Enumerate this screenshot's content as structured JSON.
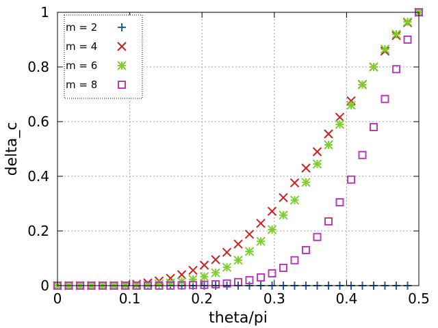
{
  "chart_data": {
    "type": "scatter",
    "title": "",
    "xlabel": "theta/pi",
    "ylabel": "delta_c",
    "xlim": [
      0,
      0.5
    ],
    "ylim": [
      0,
      1
    ],
    "xticks": [
      0,
      0.1,
      0.2,
      0.3,
      0.4,
      0.5
    ],
    "yticks": [
      0,
      0.2,
      0.4,
      0.6,
      0.8,
      1
    ],
    "xtick_labels": [
      "0",
      "0.1",
      "0.2",
      "0.3",
      "0.4",
      "0.5"
    ],
    "ytick_labels": [
      "0",
      "0.2",
      "0.4",
      "0.6",
      "0.8",
      "1"
    ],
    "grid": true,
    "legend_position": "top-left",
    "x": [
      0,
      0.0156,
      0.0313,
      0.0469,
      0.0625,
      0.0781,
      0.0938,
      0.1094,
      0.125,
      0.1406,
      0.1563,
      0.1719,
      0.1875,
      0.2031,
      0.2188,
      0.2344,
      0.25,
      0.2656,
      0.2813,
      0.2969,
      0.3125,
      0.3281,
      0.3438,
      0.3594,
      0.375,
      0.3906,
      0.4063,
      0.4219,
      0.4375,
      0.4531,
      0.4688,
      0.4844,
      0.5
    ],
    "series": [
      {
        "name": "m = 2",
        "marker": "plus",
        "color": "#1f5fa8",
        "values": [
          0,
          0,
          0,
          0,
          0,
          0,
          0,
          0,
          0,
          0,
          0,
          0,
          0,
          0,
          0,
          0,
          0,
          0,
          0,
          0,
          0,
          0,
          0,
          0,
          0,
          0,
          0,
          0,
          0,
          0,
          0,
          0,
          1.0
        ]
      },
      {
        "name": "m = 4",
        "marker": "cross",
        "color": "#cc1f1f",
        "values": [
          0,
          0,
          0,
          0,
          0,
          0,
          0.002,
          0.005,
          0.01,
          0.017,
          0.027,
          0.04,
          0.056,
          0.075,
          0.095,
          0.122,
          0.152,
          0.188,
          0.228,
          0.272,
          0.322,
          0.376,
          0.43,
          0.49,
          0.555,
          0.616,
          0.676,
          0.736,
          0.8,
          0.858,
          0.915,
          0.962,
          1.0
        ]
      },
      {
        "name": "m = 6",
        "marker": "star",
        "color": "#7ccf2e",
        "values": [
          0,
          0,
          0,
          0,
          0,
          0,
          0,
          0.001,
          0.003,
          0.006,
          0.01,
          0.015,
          0.023,
          0.033,
          0.047,
          0.067,
          0.093,
          0.125,
          0.162,
          0.205,
          0.258,
          0.313,
          0.378,
          0.445,
          0.515,
          0.59,
          0.66,
          0.735,
          0.8,
          0.865,
          0.92,
          0.965,
          1.0
        ]
      },
      {
        "name": "m = 8",
        "marker": "square",
        "color": "#b83db8",
        "values": [
          0,
          0,
          0,
          0,
          0,
          0,
          0,
          0,
          0,
          0,
          0,
          0.001,
          0.002,
          0.003,
          0.005,
          0.008,
          0.013,
          0.02,
          0.03,
          0.045,
          0.065,
          0.093,
          0.13,
          0.178,
          0.235,
          0.305,
          0.388,
          0.478,
          0.58,
          0.683,
          0.792,
          0.9,
          1.0
        ]
      }
    ]
  }
}
